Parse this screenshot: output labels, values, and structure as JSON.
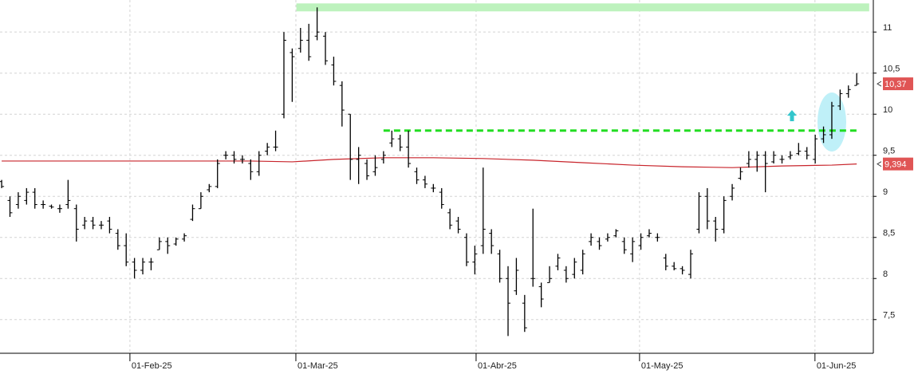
{
  "chart_data": {
    "type": "ohlc",
    "x": [
      0,
      1,
      2,
      3,
      4,
      5,
      6,
      7,
      8,
      9,
      10,
      11,
      12,
      13,
      14,
      15,
      16,
      17,
      18,
      19,
      20,
      21,
      22,
      23,
      24,
      25,
      26,
      27,
      28,
      29,
      30,
      31,
      32,
      33,
      34,
      35,
      36,
      37,
      38,
      39,
      40,
      41,
      42,
      43,
      44,
      45,
      46,
      47,
      48,
      49,
      50,
      51,
      52,
      53,
      54,
      55,
      56,
      57,
      58,
      59,
      60,
      61,
      62,
      63,
      64,
      65,
      66,
      67,
      68,
      69,
      70,
      71,
      72,
      73,
      74,
      75,
      76,
      77,
      78,
      79,
      80,
      81,
      82,
      83,
      84,
      85,
      86,
      87,
      88,
      89,
      90,
      91,
      92,
      93,
      94,
      95,
      96,
      97,
      98,
      99,
      100,
      101,
      102,
      103
    ],
    "open": [
      9.18,
      8.95,
      8.9,
      8.95,
      9.05,
      8.9,
      8.88,
      8.85,
      8.9,
      8.85,
      8.65,
      8.7,
      8.65,
      8.7,
      8.55,
      8.4,
      8.2,
      8.1,
      8.2,
      8.35,
      8.45,
      8.42,
      8.48,
      8.72,
      8.85,
      9.08,
      9.12,
      9.5,
      9.5,
      9.45,
      9.4,
      9.3,
      9.55,
      9.6,
      10.0,
      10.75,
      10.8,
      10.9,
      10.95,
      10.95,
      10.6,
      10.35,
      10.0,
      9.45,
      9.4,
      9.3,
      9.45,
      9.65,
      9.7,
      9.6,
      9.3,
      9.2,
      9.1,
      9.05,
      8.8,
      8.7,
      8.5,
      8.2,
      8.4,
      8.55,
      8.3,
      8.0,
      7.85,
      7.7,
      8.0,
      7.9,
      7.95,
      8.15,
      8.1,
      8.05,
      8.1,
      8.45,
      8.45,
      8.48,
      8.52,
      8.45,
      8.3,
      8.4,
      8.52,
      8.5,
      8.25,
      8.15,
      8.12,
      8.05,
      8.6,
      9.0,
      8.7,
      8.6,
      9.0,
      9.22,
      9.4,
      9.45,
      9.5,
      9.42,
      9.45,
      9.48,
      9.52,
      9.55,
      9.45,
      9.7,
      9.75,
      10.1,
      10.25,
      10.35
    ],
    "high": [
      9.2,
      9.0,
      9.05,
      9.1,
      9.1,
      8.95,
      8.9,
      8.9,
      9.2,
      8.9,
      8.75,
      8.75,
      8.7,
      8.75,
      8.6,
      8.55,
      8.25,
      8.25,
      8.25,
      8.5,
      8.5,
      8.5,
      8.55,
      8.9,
      9.05,
      9.15,
      9.45,
      9.55,
      9.55,
      9.5,
      9.45,
      9.55,
      9.65,
      9.8,
      11.0,
      10.8,
      11.05,
      11.1,
      11.3,
      11.0,
      10.7,
      10.4,
      10.0,
      9.6,
      9.45,
      9.5,
      9.55,
      9.8,
      9.75,
      9.8,
      9.35,
      9.25,
      9.15,
      9.1,
      8.85,
      8.75,
      8.55,
      8.4,
      9.35,
      8.6,
      8.35,
      8.15,
      8.25,
      7.8,
      8.85,
      7.95,
      8.15,
      8.3,
      8.15,
      8.25,
      8.35,
      8.55,
      8.5,
      8.55,
      8.6,
      8.5,
      8.5,
      8.55,
      8.6,
      8.55,
      8.3,
      8.2,
      8.15,
      8.35,
      9.05,
      9.1,
      8.75,
      9.0,
      9.15,
      9.35,
      9.55,
      9.55,
      9.55,
      9.55,
      9.5,
      9.55,
      9.65,
      9.6,
      9.75,
      9.85,
      10.15,
      10.3,
      10.35,
      10.5
    ],
    "low": [
      9.1,
      8.75,
      8.85,
      8.9,
      8.85,
      8.85,
      8.85,
      8.8,
      8.85,
      8.45,
      8.6,
      8.6,
      8.6,
      8.55,
      8.35,
      8.15,
      8.0,
      8.05,
      8.1,
      8.35,
      8.3,
      8.4,
      8.45,
      8.7,
      8.85,
      9.05,
      9.1,
      9.45,
      9.4,
      9.4,
      9.2,
      9.25,
      9.5,
      9.55,
      9.95,
      10.15,
      10.75,
      10.65,
      10.9,
      10.6,
      10.35,
      9.85,
      9.2,
      9.15,
      9.2,
      9.25,
      9.4,
      9.6,
      9.55,
      9.35,
      9.15,
      9.1,
      9.05,
      8.85,
      8.6,
      8.55,
      8.15,
      8.05,
      8.3,
      8.3,
      7.95,
      7.3,
      7.8,
      7.35,
      7.9,
      7.65,
      7.95,
      8.1,
      7.95,
      8.0,
      8.05,
      8.4,
      8.35,
      8.45,
      8.5,
      8.3,
      8.2,
      8.35,
      8.5,
      8.45,
      8.1,
      8.1,
      8.05,
      8.0,
      8.55,
      8.6,
      8.45,
      8.55,
      8.95,
      9.2,
      9.35,
      9.3,
      9.05,
      9.4,
      9.4,
      9.45,
      9.5,
      9.45,
      9.4,
      9.65,
      9.7,
      10.05,
      10.2,
      10.35
    ],
    "close": [
      9.12,
      8.8,
      9.0,
      9.05,
      8.9,
      8.9,
      8.87,
      8.85,
      8.95,
      8.6,
      8.7,
      8.65,
      8.65,
      8.6,
      8.4,
      8.2,
      8.1,
      8.2,
      8.2,
      8.45,
      8.4,
      8.48,
      8.52,
      8.85,
      9.0,
      9.12,
      9.4,
      9.5,
      9.45,
      9.45,
      9.3,
      9.5,
      9.6,
      9.6,
      10.9,
      10.7,
      10.9,
      10.7,
      11.0,
      10.65,
      10.4,
      10.05,
      9.45,
      9.5,
      9.25,
      9.35,
      9.5,
      9.7,
      9.6,
      9.4,
      9.2,
      9.15,
      9.1,
      8.9,
      8.65,
      8.6,
      8.2,
      8.3,
      8.6,
      8.4,
      8.0,
      7.7,
      8.1,
      7.4,
      8.0,
      7.75,
      8.0,
      8.25,
      8.0,
      8.2,
      8.3,
      8.5,
      8.4,
      8.5,
      8.58,
      8.35,
      8.45,
      8.5,
      8.55,
      8.5,
      8.15,
      8.12,
      8.1,
      8.3,
      9.0,
      8.7,
      8.6,
      8.95,
      9.1,
      9.3,
      9.45,
      9.5,
      9.4,
      9.5,
      9.45,
      9.5,
      9.55,
      9.5,
      9.7,
      9.75,
      10.1,
      10.25,
      10.3,
      10.37
    ],
    "color": "#000000",
    "ma": {
      "x": [
        0,
        10,
        20,
        30,
        35,
        40,
        46,
        52,
        58,
        64,
        70,
        76,
        82,
        88,
        94,
        100,
        103
      ],
      "values": [
        9.43,
        9.43,
        9.43,
        9.43,
        9.42,
        9.45,
        9.47,
        9.47,
        9.46,
        9.44,
        9.41,
        9.38,
        9.36,
        9.35,
        9.37,
        9.38,
        9.394
      ],
      "color": "#c8242b"
    },
    "resistance": {
      "value": 9.8,
      "x": [
        46,
        103
      ],
      "color": "#22dd22"
    },
    "band": {
      "value": 11.3,
      "x": [
        35.5,
        104.5
      ],
      "color": "#bdf2bd"
    },
    "last_price": {
      "value": 10.37,
      "label": "10,37",
      "color": "#e05555"
    },
    "ma_last": {
      "value": 9.394,
      "label": "9,394",
      "color": "#e05555"
    },
    "xlim": [
      -0.2,
      105
    ],
    "xticks": [
      {
        "value": 15.45,
        "label": "01-Feb-25"
      },
      {
        "value": 35.44,
        "label": "01-Mar-25"
      },
      {
        "value": 57.15,
        "label": "01-Abr-25"
      },
      {
        "value": 76.84,
        "label": "01-May-25"
      },
      {
        "value": 97.97,
        "label": "01-Jun-25"
      }
    ],
    "ylim": [
      7.09,
      11.39
    ],
    "yticks": [
      {
        "value": 7.5,
        "label": "7,5"
      },
      8,
      {
        "value": 8.5,
        "label": "8,5"
      },
      9,
      {
        "value": 9.5,
        "label": "9,5"
      },
      10,
      {
        "value": 10.5,
        "label": "10,5"
      },
      11
    ],
    "grid": true
  }
}
